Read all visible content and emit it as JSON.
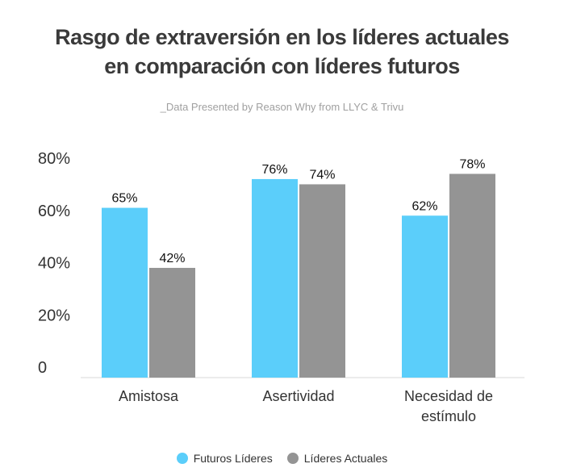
{
  "chart_data": {
    "type": "bar",
    "title_line1": "Rasgo de extraversión en los líderes actuales",
    "title_line2": "en comparación con líderes futuros",
    "subtitle": "_Data Presented by Reason Why from LLYC & Trivu",
    "categories": [
      [
        "Amistosa"
      ],
      [
        "Asertividad"
      ],
      [
        "Necesidad de",
        "estímulo"
      ]
    ],
    "series": [
      {
        "name": "Futuros Líderes",
        "color": "#5bcefa",
        "values": [
          65,
          76,
          62
        ],
        "labels": [
          "65%",
          "76%",
          "62%"
        ]
      },
      {
        "name": "Líderes Actuales",
        "color": "#949494",
        "values": [
          42,
          74,
          78
        ],
        "labels": [
          "42%",
          "74%",
          "78%"
        ]
      }
    ],
    "y_ticks": [
      0,
      20,
      40,
      60,
      80
    ],
    "y_tick_labels": [
      "0",
      "20%",
      "40%",
      "60%",
      "80%"
    ],
    "ylim": [
      0,
      85
    ],
    "grid": false,
    "legend": "bottom-center"
  }
}
